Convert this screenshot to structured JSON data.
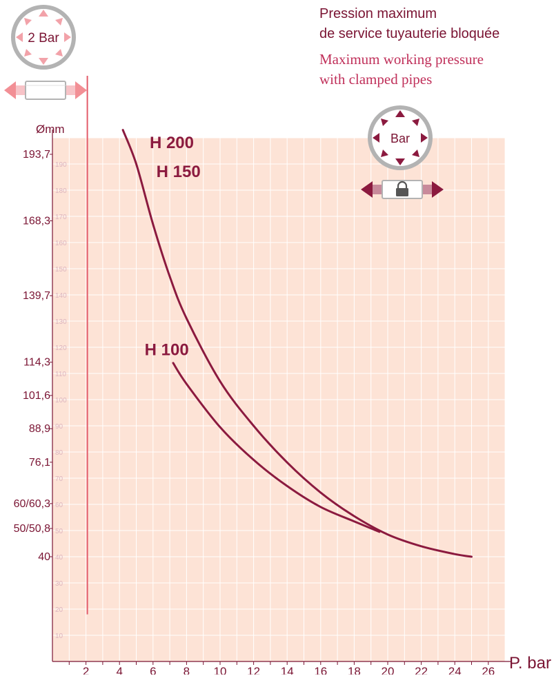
{
  "title": {
    "fr_line1": "Pression maximum",
    "fr_line2": "de service tuyauterie bloquée",
    "en_line1": "Maximum working pressure",
    "en_line2": "with clamped pipes"
  },
  "badges": {
    "two_bar": "2 Bar",
    "bar": "Bar"
  },
  "icons": {
    "two_bar_badge": "pressure-circle-icon",
    "open_pipe": "pipe-double-arrow-icon",
    "bar_badge": "pressure-circle-icon",
    "clamped_pipe": "padlock-pipe-icon"
  },
  "colors": {
    "plot_background": "#fde3d6",
    "grid": "#ffffff",
    "curve": "#8b1a3f",
    "text_dark": "#7a1433",
    "text_red": "#c0305a",
    "tick_faint": "#dcb4bf",
    "red_line": "#e35b6a"
  },
  "chart_data": {
    "type": "line",
    "xlabel": "P. bar",
    "ylabel": "Ømm",
    "xlim": [
      0,
      27
    ],
    "ylim": [
      0,
      200
    ],
    "x_ticks": [
      2,
      4,
      6,
      8,
      10,
      12,
      14,
      16,
      18,
      20,
      22,
      24,
      26
    ],
    "y_faint_ticks": [
      10,
      20,
      30,
      40,
      50,
      60,
      70,
      80,
      90,
      100,
      110,
      120,
      130,
      140,
      150,
      160,
      170,
      180,
      190
    ],
    "diameter_labels": [
      {
        "label": "193,7",
        "y": 193.7
      },
      {
        "label": "168,3",
        "y": 168.3
      },
      {
        "label": "139,7",
        "y": 139.7
      },
      {
        "label": "114,3",
        "y": 114.3
      },
      {
        "label": "101,6",
        "y": 101.6
      },
      {
        "label": "88,9",
        "y": 88.9
      },
      {
        "label": "76,1",
        "y": 76.1
      },
      {
        "label": "60/60,3",
        "y": 60.3
      },
      {
        "label": "50/50,8",
        "y": 50.8
      },
      {
        "label": "40",
        "y": 40
      }
    ],
    "reference_line": {
      "x": 2,
      "y_from": 18,
      "y_to": 200
    },
    "grid": true,
    "series": [
      {
        "name": "H 200 / H 150",
        "points": [
          [
            4.2,
            203
          ],
          [
            5,
            190
          ],
          [
            6,
            167
          ],
          [
            7,
            147
          ],
          [
            8,
            131
          ],
          [
            10,
            107
          ],
          [
            12,
            90
          ],
          [
            14,
            76
          ],
          [
            16,
            64.5
          ],
          [
            18,
            55.5
          ],
          [
            20,
            48.5
          ],
          [
            22,
            44
          ],
          [
            24,
            41
          ],
          [
            25,
            40
          ]
        ]
      },
      {
        "name": "H 100",
        "points": [
          [
            7.2,
            114
          ],
          [
            8,
            106
          ],
          [
            10,
            89.5
          ],
          [
            12,
            77
          ],
          [
            14,
            67
          ],
          [
            16,
            59
          ],
          [
            18,
            53.5
          ],
          [
            19.5,
            49.5
          ]
        ]
      }
    ],
    "series_labels": [
      {
        "text": "H 200",
        "x": 5.8,
        "y": 196
      },
      {
        "text": "H 150",
        "x": 6.2,
        "y": 185
      },
      {
        "text": "H 100",
        "x": 5.5,
        "y": 117
      }
    ]
  }
}
